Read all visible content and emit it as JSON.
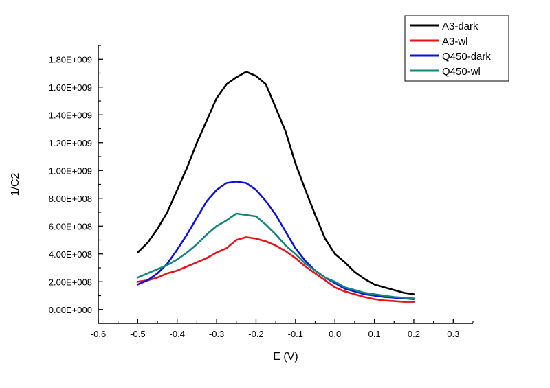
{
  "chart_data": {
    "type": "line",
    "title": "",
    "xlabel": "E (V)",
    "ylabel": "1/C2",
    "xlim": [
      -0.6,
      0.35
    ],
    "ylim": [
      -100000000.0,
      1900000000.0
    ],
    "grid": false,
    "legend_position": "top-right",
    "x_ticks": [
      -0.6,
      -0.5,
      -0.4,
      -0.3,
      -0.2,
      -0.1,
      0.0,
      0.1,
      0.2,
      0.3
    ],
    "x_tick_labels": [
      "-0.6",
      "-0.5",
      "-0.4",
      "-0.3",
      "-0.2",
      "-0.1",
      "0.0",
      "0.1",
      "0.2",
      "0.3"
    ],
    "y_ticks": [
      0,
      200000000.0,
      400000000.0,
      600000000.0,
      800000000.0,
      1000000000.0,
      1200000000.0,
      1400000000.0,
      1600000000.0,
      1800000000.0
    ],
    "y_tick_labels": [
      "0.00E+000",
      "2.00E+008",
      "4.00E+008",
      "6.00E+008",
      "8.00E+008",
      "1.00E+009",
      "1.20E+009",
      "1.40E+009",
      "1.60E+009",
      "1.80E+009"
    ],
    "x": [
      -0.5,
      -0.475,
      -0.45,
      -0.425,
      -0.4,
      -0.375,
      -0.35,
      -0.325,
      -0.3,
      -0.275,
      -0.25,
      -0.225,
      -0.2,
      -0.175,
      -0.15,
      -0.125,
      -0.1,
      -0.075,
      -0.05,
      -0.025,
      0.0,
      0.025,
      0.05,
      0.075,
      0.1,
      0.125,
      0.15,
      0.175,
      0.2
    ],
    "series": [
      {
        "name": "A3-dark",
        "color": "#000000",
        "values": [
          410000000.0,
          480000000.0,
          580000000.0,
          700000000.0,
          860000000.0,
          1020000000.0,
          1200000000.0,
          1360000000.0,
          1520000000.0,
          1620000000.0,
          1670000000.0,
          1710000000.0,
          1680000000.0,
          1620000000.0,
          1450000000.0,
          1280000000.0,
          1050000000.0,
          860000000.0,
          680000000.0,
          510000000.0,
          400000000.0,
          340000000.0,
          270000000.0,
          220000000.0,
          180000000.0,
          160000000.0,
          140000000.0,
          120000000.0,
          110000000.0
        ]
      },
      {
        "name": "A3-wl",
        "color": "#e8131a",
        "values": [
          200000000.0,
          210000000.0,
          230000000.0,
          260000000.0,
          280000000.0,
          310000000.0,
          340000000.0,
          370000000.0,
          410000000.0,
          440000000.0,
          500000000.0,
          520000000.0,
          510000000.0,
          490000000.0,
          460000000.0,
          420000000.0,
          370000000.0,
          310000000.0,
          260000000.0,
          210000000.0,
          160000000.0,
          130000000.0,
          110000000.0,
          90000000.0,
          75000000.0,
          65000000.0,
          60000000.0,
          55000000.0,
          55000000.0
        ]
      },
      {
        "name": "Q450-dark",
        "color": "#0a10e0",
        "values": [
          180000000.0,
          210000000.0,
          260000000.0,
          330000000.0,
          430000000.0,
          540000000.0,
          660000000.0,
          780000000.0,
          860000000.0,
          910000000.0,
          920000000.0,
          910000000.0,
          860000000.0,
          780000000.0,
          680000000.0,
          560000000.0,
          440000000.0,
          350000000.0,
          280000000.0,
          230000000.0,
          190000000.0,
          150000000.0,
          130000000.0,
          110000000.0,
          100000000.0,
          90000000.0,
          85000000.0,
          80000000.0,
          75000000.0
        ]
      },
      {
        "name": "Q450-wl",
        "color": "#13857a",
        "values": [
          230000000.0,
          260000000.0,
          290000000.0,
          320000000.0,
          360000000.0,
          410000000.0,
          470000000.0,
          540000000.0,
          600000000.0,
          640000000.0,
          690000000.0,
          680000000.0,
          670000000.0,
          610000000.0,
          540000000.0,
          460000000.0,
          400000000.0,
          330000000.0,
          280000000.0,
          230000000.0,
          200000000.0,
          160000000.0,
          140000000.0,
          120000000.0,
          110000000.0,
          100000000.0,
          90000000.0,
          85000000.0,
          80000000.0
        ]
      }
    ]
  }
}
